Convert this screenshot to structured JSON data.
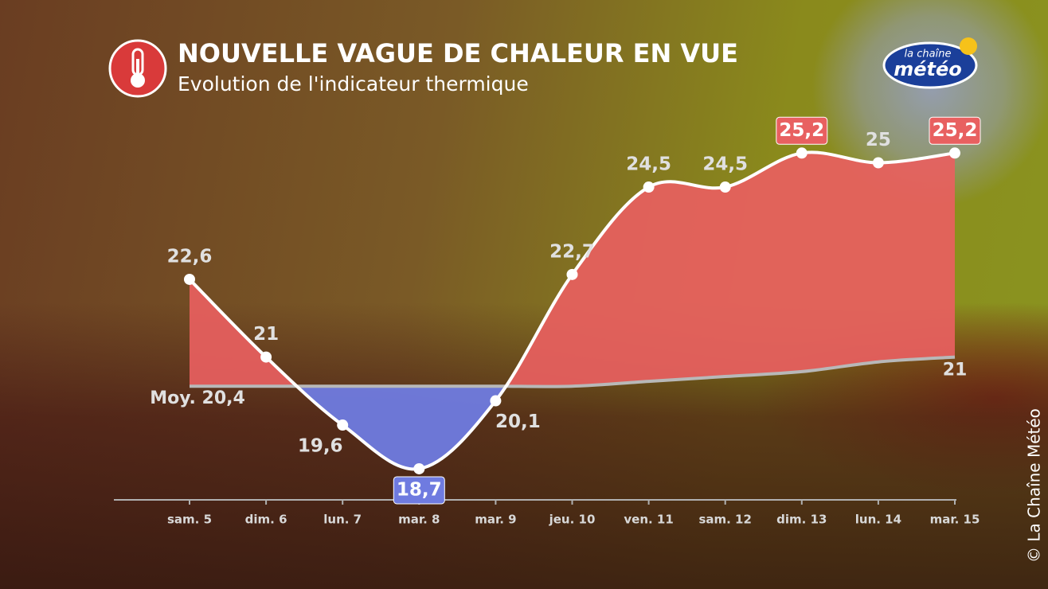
{
  "chart_data": {
    "type": "line",
    "title": "NOUVELLE VAGUE DE CHALEUR EN VUE",
    "subtitle": "Evolution de l'indicateur thermique",
    "logo": {
      "line1": "la chaîne",
      "line2": "météo"
    },
    "credit": "© La Chaîne Météo",
    "categories": [
      "sam. 5",
      "dim. 6",
      "lun. 7",
      "mar. 8",
      "mar. 9",
      "jeu. 10",
      "ven. 11",
      "sam. 12",
      "dim. 13",
      "lun. 14",
      "mar. 15"
    ],
    "series": [
      {
        "color": "#ffffff",
        "values": [
          22.6,
          21,
          19.6,
          18.7,
          20.1,
          22.7,
          24.5,
          24.5,
          25.2,
          25,
          25.2
        ],
        "value_labels": [
          "22,6",
          "21",
          "19,6",
          "18,7",
          "20,1",
          "22,7",
          "24,5",
          "24,5",
          "25,2",
          "25",
          "25,2"
        ]
      },
      {
        "color": "#b8b8b8",
        "values": [
          20.4,
          20.4,
          20.4,
          20.4,
          20.4,
          20.4,
          20.5,
          20.6,
          20.7,
          20.9,
          21
        ],
        "value_labels": [
          "Moy. 20,4",
          null,
          null,
          null,
          null,
          null,
          null,
          null,
          null,
          null,
          "21"
        ]
      }
    ],
    "above_color": "#e86060",
    "below_color": "#6f7be0",
    "ylim": [
      18.06,
      25.5
    ]
  }
}
